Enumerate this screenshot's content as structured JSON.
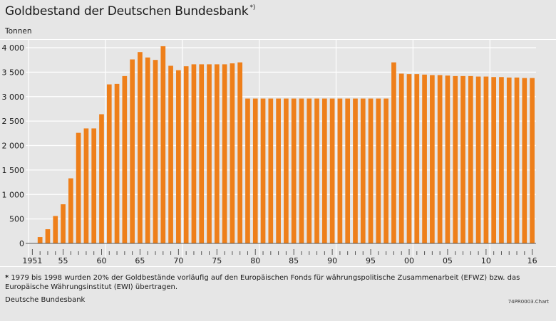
{
  "title": "Goldbestand der Deutschen Bundesbank",
  "title_marker": "*)",
  "unit": "Tonnen",
  "footnote": {
    "marker": "*",
    "text": "1979 bis 1998 wurden 20% der Goldbestände vorläufig auf den Europäischen Fonds für währungspolitische Zusammenarbeit (EFWZ) bzw. das Europäische Währungsinstitut (EWI) übertragen."
  },
  "source": "Deutsche Bundesbank",
  "chart_code": "74PR0003.Chart",
  "colors": {
    "bar": "#ee7f1a",
    "background": "#e6e6e6",
    "grid": "#ffffff"
  },
  "chart_data": {
    "type": "bar",
    "title": "Goldbestand der Deutschen Bundesbank",
    "ylabel": "Tonnen",
    "ylim": [
      0,
      4000
    ],
    "y_ticks": [
      0,
      500,
      1000,
      1500,
      2000,
      2500,
      3000,
      3500,
      4000
    ],
    "y_tick_labels": [
      "0",
      "500",
      "1 000",
      "1 500",
      "2 000",
      "2 500",
      "3 000",
      "3 500",
      "4 000"
    ],
    "x_tick_labels": [
      {
        "year": 1951,
        "label": "1951"
      },
      {
        "year": 1955,
        "label": "55"
      },
      {
        "year": 1960,
        "label": "60"
      },
      {
        "year": 1965,
        "label": "65"
      },
      {
        "year": 1970,
        "label": "70"
      },
      {
        "year": 1975,
        "label": "75"
      },
      {
        "year": 1980,
        "label": "80"
      },
      {
        "year": 1985,
        "label": "85"
      },
      {
        "year": 1990,
        "label": "90"
      },
      {
        "year": 1995,
        "label": "95"
      },
      {
        "year": 2000,
        "label": "00"
      },
      {
        "year": 2005,
        "label": "05"
      },
      {
        "year": 2010,
        "label": "10"
      },
      {
        "year": 2016,
        "label": "16"
      }
    ],
    "decade_gridlines": [
      1950,
      1960,
      1970,
      1980,
      1990,
      2000,
      2010
    ],
    "grid": true,
    "legend": "none",
    "categories": [
      1951,
      1952,
      1953,
      1954,
      1955,
      1956,
      1957,
      1958,
      1959,
      1960,
      1961,
      1962,
      1963,
      1964,
      1965,
      1966,
      1967,
      1968,
      1969,
      1970,
      1971,
      1972,
      1973,
      1974,
      1975,
      1976,
      1977,
      1978,
      1979,
      1980,
      1981,
      1982,
      1983,
      1984,
      1985,
      1986,
      1987,
      1988,
      1989,
      1990,
      1991,
      1992,
      1993,
      1994,
      1995,
      1996,
      1997,
      1998,
      1999,
      2000,
      2001,
      2002,
      2003,
      2004,
      2005,
      2006,
      2007,
      2008,
      2009,
      2010,
      2011,
      2012,
      2013,
      2014,
      2015,
      2016
    ],
    "values": [
      0,
      130,
      290,
      560,
      800,
      1330,
      2260,
      2350,
      2350,
      2640,
      3250,
      3260,
      3420,
      3760,
      3910,
      3800,
      3750,
      4030,
      3630,
      3540,
      3620,
      3660,
      3660,
      3660,
      3660,
      3660,
      3680,
      3700,
      2960,
      2960,
      2960,
      2960,
      2960,
      2960,
      2960,
      2960,
      2960,
      2960,
      2960,
      2960,
      2960,
      2960,
      2960,
      2960,
      2960,
      2960,
      2960,
      3700,
      3470,
      3460,
      3460,
      3450,
      3440,
      3440,
      3430,
      3420,
      3420,
      3420,
      3410,
      3410,
      3400,
      3400,
      3390,
      3390,
      3380,
      3380
    ]
  }
}
